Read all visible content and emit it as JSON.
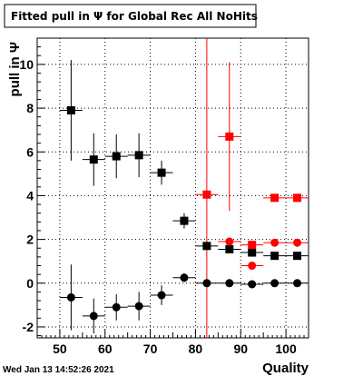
{
  "chart_data": {
    "type": "scatter",
    "title": "Fitted pull in  Ψ  for Global Rec All NoHits",
    "xlabel": "Quality",
    "ylabel": "pull in  Ψ",
    "xlim": [
      45,
      105
    ],
    "ylim": [
      -2.5,
      11.2
    ],
    "x_ticks": [
      50,
      60,
      70,
      80,
      90,
      100
    ],
    "y_ticks": [
      -2,
      0,
      2,
      4,
      6,
      8,
      10
    ],
    "grid": true,
    "timestamp": "Wed Jan 13 14:52:26 2021",
    "cut_line": {
      "x": 82.5,
      "color": "#ff0000"
    },
    "series": [
      {
        "marker": "square",
        "color": "#000000",
        "x": [
          52.5,
          57.5,
          62.5,
          67.5,
          72.5,
          77.5,
          82.5,
          87.5,
          92.5,
          97.5,
          102.5
        ],
        "y": [
          7.9,
          5.65,
          5.8,
          5.85,
          5.05,
          2.85,
          1.7,
          1.55,
          1.4,
          1.25,
          1.25
        ],
        "yerr": [
          2.3,
          1.2,
          1.0,
          1.0,
          0.55,
          0.35,
          0.08,
          0.06,
          0.05,
          0.04,
          0.04
        ]
      },
      {
        "marker": "circle",
        "color": "#000000",
        "x": [
          52.5,
          57.5,
          62.5,
          67.5,
          72.5,
          77.5,
          82.5,
          87.5,
          92.5,
          97.5,
          102.5
        ],
        "y": [
          -0.65,
          -1.5,
          -1.1,
          -1.05,
          -0.55,
          0.25,
          0.0,
          0.0,
          -0.05,
          0.0,
          0.0
        ],
        "yerr": [
          1.5,
          0.8,
          0.6,
          0.65,
          0.45,
          0.2,
          0.05,
          0.04,
          0.03,
          0.03,
          0.02
        ]
      },
      {
        "marker": "square",
        "color": "#ff0000",
        "x": [
          82.5,
          87.5,
          92.5,
          97.5,
          102.5
        ],
        "y": [
          4.05,
          6.7,
          1.75,
          3.9,
          3.9
        ],
        "yerr": [
          0,
          3.4,
          0,
          0,
          0
        ]
      },
      {
        "marker": "circle",
        "color": "#ff0000",
        "x": [
          87.5,
          92.5,
          97.5,
          102.5
        ],
        "y": [
          1.9,
          0.8,
          1.85,
          1.85
        ],
        "yerr": [
          0,
          0,
          0,
          0
        ]
      }
    ]
  }
}
